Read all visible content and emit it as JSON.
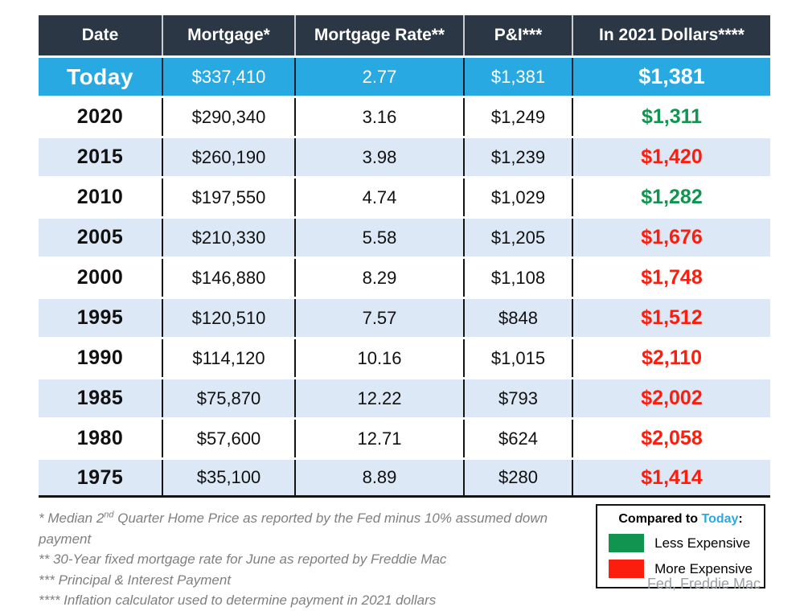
{
  "colors": {
    "header_bg": "#2b3744",
    "today_blue": "#29a9e2",
    "alt_row_blue": "#dce8f5",
    "less_expensive_green": "#11944f",
    "more_expensive_red": "#fb1d0d"
  },
  "chart_data": {
    "type": "table",
    "columns": [
      "Date",
      "Mortgage*",
      "Mortgage Rate**",
      "P&I***",
      "In 2021 Dollars****"
    ],
    "rows": [
      {
        "date": "Today",
        "mortgage": 337410,
        "mortgage_display": "$337,410",
        "rate": 2.77,
        "rate_display": "2.77",
        "pi": 1381,
        "pi_display": "$1,381",
        "in_2021_dollars": 1381,
        "in_2021_display": "$1,381",
        "comparison": "baseline"
      },
      {
        "date": "2020",
        "mortgage": 290340,
        "mortgage_display": "$290,340",
        "rate": 3.16,
        "rate_display": "3.16",
        "pi": 1249,
        "pi_display": "$1,249",
        "in_2021_dollars": 1311,
        "in_2021_display": "$1,311",
        "comparison": "less"
      },
      {
        "date": "2015",
        "mortgage": 260190,
        "mortgage_display": "$260,190",
        "rate": 3.98,
        "rate_display": "3.98",
        "pi": 1239,
        "pi_display": "$1,239",
        "in_2021_dollars": 1420,
        "in_2021_display": "$1,420",
        "comparison": "more"
      },
      {
        "date": "2010",
        "mortgage": 197550,
        "mortgage_display": "$197,550",
        "rate": 4.74,
        "rate_display": "4.74",
        "pi": 1029,
        "pi_display": "$1,029",
        "in_2021_dollars": 1282,
        "in_2021_display": "$1,282",
        "comparison": "less"
      },
      {
        "date": "2005",
        "mortgage": 210330,
        "mortgage_display": "$210,330",
        "rate": 5.58,
        "rate_display": "5.58",
        "pi": 1205,
        "pi_display": "$1,205",
        "in_2021_dollars": 1676,
        "in_2021_display": "$1,676",
        "comparison": "more"
      },
      {
        "date": "2000",
        "mortgage": 146880,
        "mortgage_display": "$146,880",
        "rate": 8.29,
        "rate_display": "8.29",
        "pi": 1108,
        "pi_display": "$1,108",
        "in_2021_dollars": 1748,
        "in_2021_display": "$1,748",
        "comparison": "more"
      },
      {
        "date": "1995",
        "mortgage": 120510,
        "mortgage_display": "$120,510",
        "rate": 7.57,
        "rate_display": "7.57",
        "pi": 848,
        "pi_display": "$848",
        "in_2021_dollars": 1512,
        "in_2021_display": "$1,512",
        "comparison": "more"
      },
      {
        "date": "1990",
        "mortgage": 114120,
        "mortgage_display": "$114,120",
        "rate": 10.16,
        "rate_display": "10.16",
        "pi": 1015,
        "pi_display": "$1,015",
        "in_2021_dollars": 2110,
        "in_2021_display": "$2,110",
        "comparison": "more"
      },
      {
        "date": "1985",
        "mortgage": 75870,
        "mortgage_display": "$75,870",
        "rate": 12.22,
        "rate_display": "12.22",
        "pi": 793,
        "pi_display": "$793",
        "in_2021_dollars": 2002,
        "in_2021_display": "$2,002",
        "comparison": "more"
      },
      {
        "date": "1980",
        "mortgage": 57600,
        "mortgage_display": "$57,600",
        "rate": 12.71,
        "rate_display": "12.71",
        "pi": 624,
        "pi_display": "$624",
        "in_2021_dollars": 2058,
        "in_2021_display": "$2,058",
        "comparison": "more"
      },
      {
        "date": "1975",
        "mortgage": 35100,
        "mortgage_display": "$35,100",
        "rate": 8.89,
        "rate_display": "8.89",
        "pi": 280,
        "pi_display": "$280",
        "in_2021_dollars": 1414,
        "in_2021_display": "$1,414",
        "comparison": "more"
      }
    ]
  },
  "footnotes": {
    "line1": {
      "pre": "* Median 2",
      "sup": "nd",
      "post": " Quarter Home Price as reported by the Fed minus 10% assumed down payment"
    },
    "line2": "** 30-Year fixed mortgage rate for June as reported by Freddie Mac",
    "line3": "*** Principal & Interest Payment",
    "line4": "**** Inflation calculator used to determine payment in 2021 dollars"
  },
  "legend": {
    "title_pre": "Compared to ",
    "title_today": "Today",
    "title_post": ":",
    "items": [
      {
        "label": "Less Expensive",
        "color": "green"
      },
      {
        "label": "More Expensive",
        "color": "red"
      }
    ]
  },
  "source": "Fed, Freddie Mac"
}
